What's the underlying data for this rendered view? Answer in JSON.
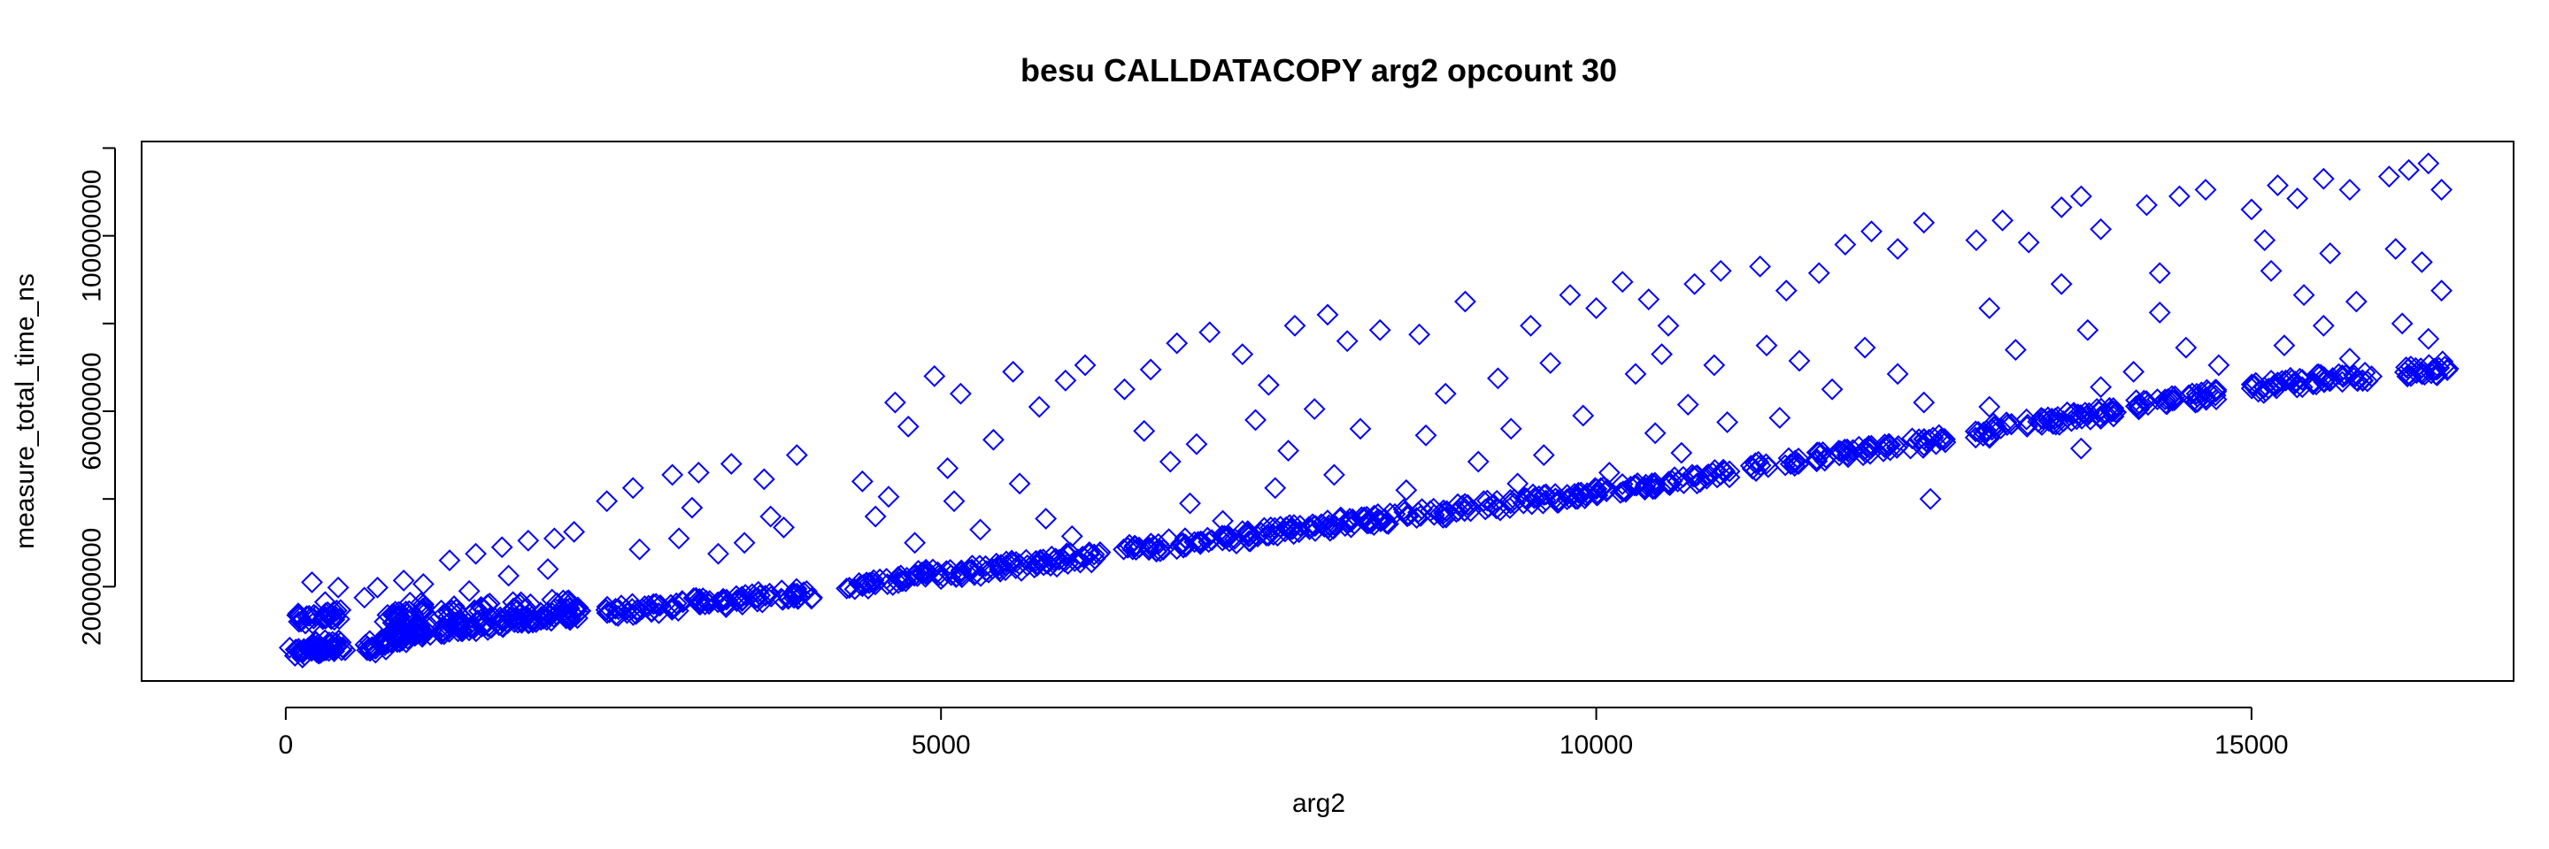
{
  "chart_data": {
    "type": "scatter",
    "title": "besu CALLDATACOPY arg2 opcount 30",
    "xlabel": "arg2",
    "ylabel": "measure_total_time_ns",
    "xlim": [
      -1100,
      17000
    ],
    "ylim": [
      -1500000,
      121500000
    ],
    "xticks": [
      0,
      5000,
      10000,
      15000
    ],
    "yticks": [
      20000000,
      40000000,
      60000000,
      80000000,
      100000000,
      120000000
    ],
    "ytick_labels": [
      "20000000",
      "",
      "60000000",
      "",
      "100000000",
      ""
    ],
    "grid": false,
    "legend": "none",
    "marker": "diamond",
    "color": "#0000ff",
    "series": [
      {
        "base": [
          [
            100,
            5000000
          ],
          [
            150,
            5800000
          ],
          [
            200,
            6400000
          ],
          [
            250,
            5600000
          ],
          [
            300,
            6000000
          ],
          [
            350,
            6700000
          ],
          [
            400,
            6200000
          ],
          [
            150,
            12800000
          ],
          [
            250,
            13000000
          ],
          [
            350,
            13400000
          ],
          [
            650,
            6200000
          ],
          [
            700,
            6900000
          ],
          [
            800,
            7600000
          ],
          [
            850,
            8400000
          ],
          [
            900,
            8800000
          ],
          [
            950,
            9200000
          ],
          [
            1000,
            9600000
          ],
          [
            1050,
            10000000
          ],
          [
            800,
            13000000
          ],
          [
            900,
            14000000
          ],
          [
            1000,
            15200000
          ],
          [
            1250,
            10400000
          ],
          [
            1300,
            11000000
          ],
          [
            1400,
            11000000
          ],
          [
            1500,
            11400000
          ],
          [
            1600,
            11800000
          ],
          [
            1700,
            12000000
          ],
          [
            1800,
            12400000
          ],
          [
            1900,
            12800000
          ],
          [
            2000,
            13200000
          ],
          [
            2100,
            13600000
          ],
          [
            2200,
            14000000
          ],
          [
            1250,
            14400000
          ],
          [
            1500,
            15000000
          ],
          [
            1800,
            15600000
          ],
          [
            2100,
            16200000
          ],
          [
            2500,
            14400000
          ],
          [
            2650,
            14800000
          ],
          [
            2800,
            15200000
          ],
          [
            3000,
            15800000
          ],
          [
            3150,
            16200000
          ],
          [
            3300,
            16600000
          ],
          [
            3500,
            17200000
          ],
          [
            3650,
            17600000
          ],
          [
            3850,
            18000000
          ],
          [
            3950,
            18400000
          ],
          [
            4350,
            20000000
          ],
          [
            4500,
            20800000
          ],
          [
            4650,
            21600000
          ],
          [
            4800,
            22400000
          ],
          [
            4950,
            23000000
          ],
          [
            5100,
            23400000
          ],
          [
            5250,
            23600000
          ],
          [
            5400,
            24400000
          ],
          [
            5550,
            24800000
          ],
          [
            5700,
            25200000
          ],
          [
            5850,
            25600000
          ],
          [
            6000,
            26400000
          ],
          [
            6150,
            26800000
          ],
          [
            6450,
            28400000
          ],
          [
            6650,
            29200000
          ],
          [
            6800,
            29800000
          ],
          [
            7000,
            30200000
          ],
          [
            7200,
            30800000
          ],
          [
            7350,
            31600000
          ],
          [
            7500,
            32400000
          ],
          [
            7650,
            32800000
          ],
          [
            7800,
            33400000
          ],
          [
            7950,
            34000000
          ],
          [
            8100,
            34600000
          ],
          [
            8250,
            35000000
          ],
          [
            8400,
            35600000
          ],
          [
            8600,
            36400000
          ],
          [
            8800,
            37000000
          ],
          [
            9000,
            37800000
          ],
          [
            9200,
            38400000
          ],
          [
            9400,
            39200000
          ],
          [
            9550,
            39800000
          ],
          [
            9750,
            40400000
          ],
          [
            9900,
            41000000
          ],
          [
            10050,
            41600000
          ],
          [
            10250,
            42400000
          ],
          [
            10400,
            43200000
          ],
          [
            10600,
            44000000
          ],
          [
            10800,
            44800000
          ],
          [
            10950,
            45400000
          ],
          [
            11250,
            47600000
          ],
          [
            11500,
            48400000
          ],
          [
            11700,
            49400000
          ],
          [
            11900,
            50400000
          ],
          [
            12050,
            51000000
          ],
          [
            12250,
            51600000
          ],
          [
            12450,
            52600000
          ],
          [
            12600,
            53600000
          ],
          [
            12950,
            55200000
          ],
          [
            13100,
            56200000
          ],
          [
            13350,
            57400000
          ],
          [
            13500,
            58000000
          ],
          [
            13650,
            58600000
          ],
          [
            13800,
            59400000
          ],
          [
            13950,
            60000000
          ],
          [
            14150,
            61600000
          ],
          [
            14350,
            62400000
          ],
          [
            14550,
            63200000
          ],
          [
            14700,
            63800000
          ],
          [
            15050,
            65400000
          ],
          [
            15200,
            66000000
          ],
          [
            15350,
            66600000
          ],
          [
            15500,
            67200000
          ],
          [
            15650,
            67800000
          ],
          [
            15850,
            68000000
          ],
          [
            16200,
            69000000
          ],
          [
            16350,
            69400000
          ],
          [
            16450,
            70400000
          ]
        ],
        "outliers": [
          [
            100,
            12000000
          ],
          [
            300,
            16500000
          ],
          [
            400,
            19800000
          ],
          [
            200,
            21000000
          ],
          [
            700,
            19800000
          ],
          [
            900,
            21400000
          ],
          [
            1050,
            20600000
          ],
          [
            600,
            17500000
          ],
          [
            1250,
            26000000
          ],
          [
            1450,
            27500000
          ],
          [
            1650,
            29000000
          ],
          [
            1850,
            30500000
          ],
          [
            2050,
            31000000
          ],
          [
            2200,
            32500000
          ],
          [
            1700,
            22500000
          ],
          [
            2000,
            24000000
          ],
          [
            1400,
            19000000
          ],
          [
            2450,
            39500000
          ],
          [
            2650,
            42500000
          ],
          [
            2950,
            45500000
          ],
          [
            3150,
            46000000
          ],
          [
            3400,
            48000000
          ],
          [
            3650,
            44500000
          ],
          [
            3900,
            50000000
          ],
          [
            2700,
            28500000
          ],
          [
            3000,
            31000000
          ],
          [
            3300,
            27500000
          ],
          [
            3500,
            30000000
          ],
          [
            3800,
            33500000
          ],
          [
            3100,
            38000000
          ],
          [
            3700,
            36000000
          ],
          [
            4400,
            44000000
          ],
          [
            4650,
            62000000
          ],
          [
            4750,
            56500000
          ],
          [
            4950,
            68000000
          ],
          [
            5150,
            64000000
          ],
          [
            5400,
            53500000
          ],
          [
            5550,
            69000000
          ],
          [
            5750,
            61000000
          ],
          [
            5950,
            67000000
          ],
          [
            6100,
            70500000
          ],
          [
            4500,
            36000000
          ],
          [
            4800,
            30000000
          ],
          [
            5100,
            39500000
          ],
          [
            5300,
            33000000
          ],
          [
            5600,
            43500000
          ],
          [
            5800,
            35500000
          ],
          [
            6000,
            31500000
          ],
          [
            5050,
            47000000
          ],
          [
            4600,
            40500000
          ],
          [
            6400,
            65000000
          ],
          [
            6600,
            69500000
          ],
          [
            6800,
            75500000
          ],
          [
            7050,
            78000000
          ],
          [
            6550,
            55500000
          ],
          [
            6750,
            48500000
          ],
          [
            6950,
            52500000
          ],
          [
            7300,
            73000000
          ],
          [
            7500,
            66000000
          ],
          [
            7700,
            79500000
          ],
          [
            7950,
            82000000
          ],
          [
            8100,
            76000000
          ],
          [
            8350,
            78500000
          ],
          [
            7400,
            58000000
          ],
          [
            7650,
            51000000
          ],
          [
            7850,
            60500000
          ],
          [
            8000,
            45500000
          ],
          [
            8200,
            56000000
          ],
          [
            7550,
            42500000
          ],
          [
            6900,
            39000000
          ],
          [
            7150,
            35000000
          ],
          [
            8650,
            77500000
          ],
          [
            8850,
            64000000
          ],
          [
            9000,
            85000000
          ],
          [
            9250,
            67500000
          ],
          [
            9500,
            79500000
          ],
          [
            9650,
            71000000
          ],
          [
            9800,
            86500000
          ],
          [
            10000,
            83500000
          ],
          [
            10200,
            89500000
          ],
          [
            8700,
            54500000
          ],
          [
            9100,
            48500000
          ],
          [
            9350,
            56000000
          ],
          [
            9600,
            50000000
          ],
          [
            9900,
            59000000
          ],
          [
            10100,
            46000000
          ],
          [
            8550,
            42000000
          ],
          [
            9400,
            43500000
          ],
          [
            10400,
            85500000
          ],
          [
            10550,
            79500000
          ],
          [
            10750,
            89000000
          ],
          [
            10950,
            92000000
          ],
          [
            10300,
            68500000
          ],
          [
            10500,
            73000000
          ],
          [
            10700,
            61500000
          ],
          [
            10900,
            70500000
          ],
          [
            11000,
            57500000
          ],
          [
            10450,
            55000000
          ],
          [
            10650,
            50500000
          ],
          [
            11250,
            93000000
          ],
          [
            11450,
            87500000
          ],
          [
            11700,
            91500000
          ],
          [
            11900,
            98000000
          ],
          [
            12100,
            101000000
          ],
          [
            12300,
            97000000
          ],
          [
            12500,
            103000000
          ],
          [
            11300,
            75000000
          ],
          [
            11550,
            71500000
          ],
          [
            11800,
            65000000
          ],
          [
            12050,
            74500000
          ],
          [
            12300,
            68500000
          ],
          [
            12500,
            62000000
          ],
          [
            12550,
            40000000
          ],
          [
            11400,
            58500000
          ],
          [
            12900,
            99000000
          ],
          [
            13100,
            103500000
          ],
          [
            13300,
            98500000
          ],
          [
            13550,
            106500000
          ],
          [
            13700,
            109000000
          ],
          [
            13850,
            101500000
          ],
          [
            13000,
            83500000
          ],
          [
            13200,
            74000000
          ],
          [
            13550,
            89000000
          ],
          [
            13750,
            78500000
          ],
          [
            13850,
            65500000
          ],
          [
            13700,
            51500000
          ],
          [
            13000,
            61000000
          ],
          [
            14200,
            107000000
          ],
          [
            14450,
            109000000
          ],
          [
            14650,
            110500000
          ],
          [
            14300,
            91500000
          ],
          [
            14500,
            74500000
          ],
          [
            14750,
            70500000
          ],
          [
            14300,
            82500000
          ],
          [
            14100,
            69000000
          ],
          [
            15000,
            106000000
          ],
          [
            15200,
            111500000
          ],
          [
            15350,
            108500000
          ],
          [
            15550,
            113000000
          ],
          [
            15750,
            110500000
          ],
          [
            15150,
            92000000
          ],
          [
            15400,
            86500000
          ],
          [
            15600,
            96000000
          ],
          [
            15800,
            85000000
          ],
          [
            15250,
            75000000
          ],
          [
            15550,
            79500000
          ],
          [
            15750,
            72000000
          ],
          [
            15100,
            99000000
          ],
          [
            16050,
            113500000
          ],
          [
            16200,
            115000000
          ],
          [
            16350,
            116500000
          ],
          [
            16450,
            110500000
          ],
          [
            16100,
            97000000
          ],
          [
            16300,
            94000000
          ],
          [
            16450,
            87500000
          ],
          [
            16150,
            80000000
          ],
          [
            16350,
            76500000
          ]
        ]
      }
    ]
  }
}
